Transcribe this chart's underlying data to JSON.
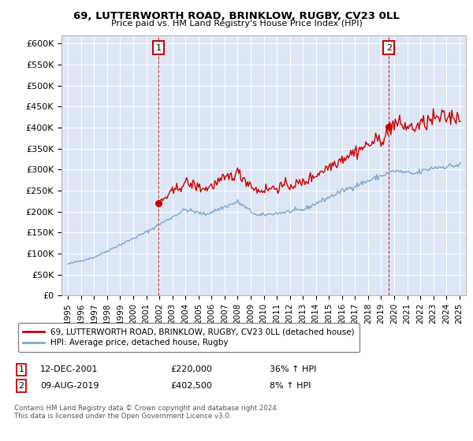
{
  "title1": "69, LUTTERWORTH ROAD, BRINKLOW, RUGBY, CV23 0LL",
  "title2": "Price paid vs. HM Land Registry's House Price Index (HPI)",
  "ylabel_ticks": [
    "£0",
    "£50K",
    "£100K",
    "£150K",
    "£200K",
    "£250K",
    "£300K",
    "£350K",
    "£400K",
    "£450K",
    "£500K",
    "£550K",
    "£600K"
  ],
  "ytick_vals": [
    0,
    50000,
    100000,
    150000,
    200000,
    250000,
    300000,
    350000,
    400000,
    450000,
    500000,
    550000,
    600000
  ],
  "ylim": [
    0,
    620000
  ],
  "sale1_x": 2001.95,
  "sale1_y": 220000,
  "sale2_x": 2019.6,
  "sale2_y": 402500,
  "hpi_color": "#7aaad0",
  "price_color": "#cc0000",
  "background_color": "#dce6f5",
  "legend_line1": "69, LUTTERWORTH ROAD, BRINKLOW, RUGBY, CV23 0LL (detached house)",
  "legend_line2": "HPI: Average price, detached house, Rugby",
  "footer": "Contains HM Land Registry data © Crown copyright and database right 2024.\nThis data is licensed under the Open Government Licence v3.0.",
  "xlim_start": 1994.5,
  "xlim_end": 2025.5
}
